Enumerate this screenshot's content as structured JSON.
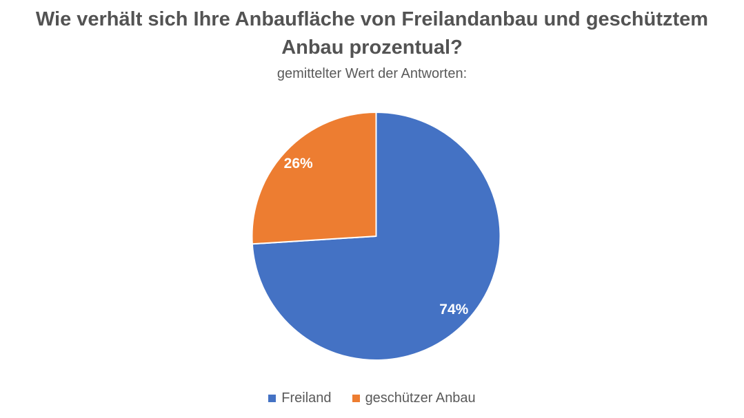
{
  "chart_data": {
    "type": "pie",
    "title": "Wie verhält sich Ihre Anbaufläche von Freilandanbau und geschütztem Anbau prozentual?",
    "subtitle": "gemittelter Wert der Antworten:",
    "categories": [
      "Freiland",
      "geschützer Anbau"
    ],
    "values": [
      74,
      26
    ],
    "data_labels": [
      "74%",
      "26%"
    ],
    "colors": [
      "#4472C4",
      "#ED7D31"
    ],
    "start_angle_deg": 0,
    "direction": "clockwise",
    "legend_position": "bottom",
    "background": "#FFFFFF",
    "slice_border_color": "#FFFFFF",
    "data_label_color": "#FFFFFF",
    "title_color": "#535353",
    "subtitle_color": "#595959",
    "legend_text_color": "#595959"
  }
}
